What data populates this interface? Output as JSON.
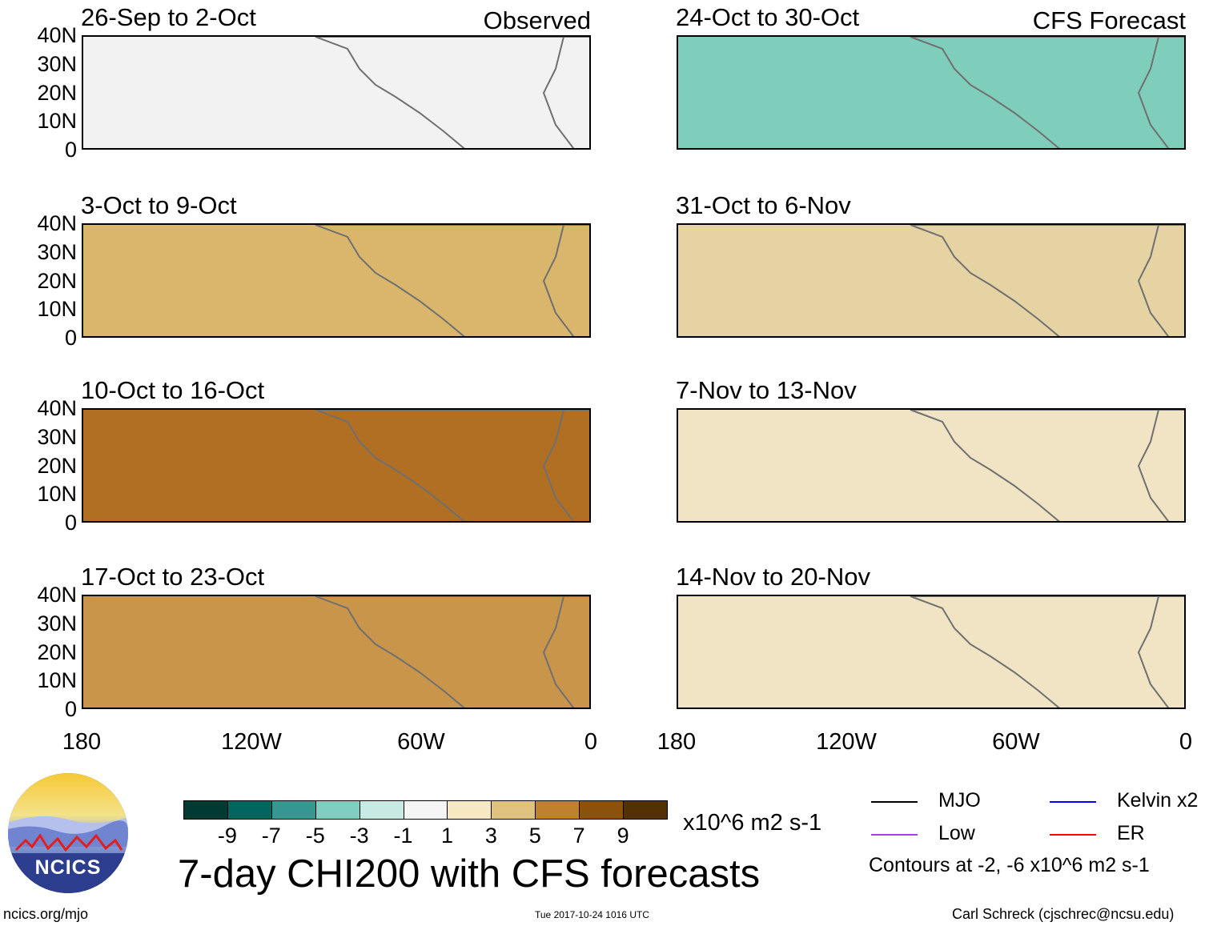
{
  "panels": [
    {
      "title": "26-Sep to 2-Oct",
      "label": "Observed",
      "fill": "#f2f2f2"
    },
    {
      "title": "3-Oct to 9-Oct",
      "label": "",
      "fill": "#d9b66c"
    },
    {
      "title": "10-Oct to 16-Oct",
      "label": "",
      "fill": "#b06f22"
    },
    {
      "title": "17-Oct to 23-Oct",
      "label": "",
      "fill": "#c8954a"
    },
    {
      "title": "24-Oct to 30-Oct",
      "label": "CFS Forecast",
      "fill": "#7fcdbb"
    },
    {
      "title": "31-Oct to 6-Nov",
      "label": "",
      "fill": "#e6d3a3"
    },
    {
      "title": "7-Nov to 13-Nov",
      "label": "",
      "fill": "#f1e4c4"
    },
    {
      "title": "14-Nov to 20-Nov",
      "label": "",
      "fill": "#f1e4c4"
    }
  ],
  "y_ticks": [
    "40N",
    "30N",
    "20N",
    "10N",
    "0"
  ],
  "x_ticks": [
    "180",
    "120W",
    "60W",
    "0"
  ],
  "colorbar": {
    "colors": [
      "#013a32",
      "#01665e",
      "#35978f",
      "#80cdc1",
      "#c7eae5",
      "#f5f5f5",
      "#f6e8c3",
      "#dfc27d",
      "#bf812d",
      "#8c510a",
      "#543005"
    ],
    "labels": [
      "-9",
      "-7",
      "-5",
      "-3",
      "-1",
      "1",
      "3",
      "5",
      "7",
      "9"
    ],
    "units": "x10^6 m2 s-1"
  },
  "main_title": "7-day CHI200 with CFS forecasts",
  "legend": {
    "items": [
      {
        "label": "MJO",
        "color": "#000000"
      },
      {
        "label": "Kelvin x2",
        "color": "#0000ff"
      },
      {
        "label": "Low",
        "color": "#a040f0"
      },
      {
        "label": "ER",
        "color": "#ff0000"
      }
    ],
    "contours_note": "Contours at -2, -6 x10^6 m2 s-1"
  },
  "logo": {
    "text": "NCICS"
  },
  "footer": {
    "left": "ncics.org/mjo",
    "center": "Tue 2017-10-24 1016 UTC",
    "right": "Carl Schreck (cjschrec@ncsu.edu)"
  }
}
